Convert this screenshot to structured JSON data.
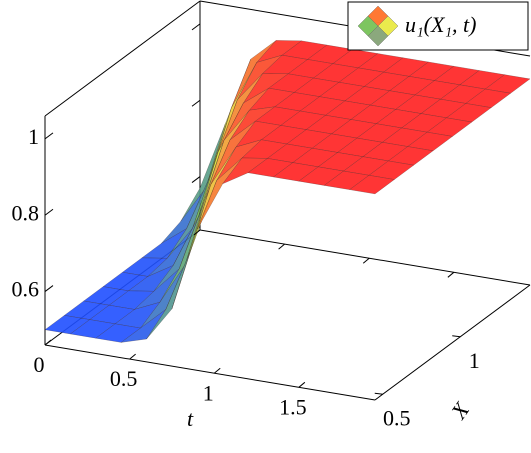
{
  "chart_data": {
    "type": "surface",
    "legend": "u₁(X₁, t)",
    "xlabel": "t",
    "ylabel": "X",
    "t": [
      0,
      0.15,
      0.3,
      0.45,
      0.6,
      0.75,
      0.9,
      1.05,
      1.2,
      1.35,
      1.5,
      1.65,
      1.8,
      1.95
    ],
    "X": [
      0.45,
      0.575,
      0.7,
      0.825,
      0.95,
      1.075,
      1.2,
      1.325,
      1.45
    ],
    "z": [
      [
        0.5,
        0.5,
        0.5,
        0.5,
        0.52,
        0.61,
        0.83,
        0.96,
        1,
        1,
        1,
        1,
        1,
        1
      ],
      [
        0.5,
        0.5,
        0.5,
        0.5,
        0.56,
        0.73,
        0.92,
        0.99,
        1,
        1,
        1,
        1,
        1,
        1
      ],
      [
        0.5,
        0.5,
        0.5,
        0.53,
        0.64,
        0.86,
        0.97,
        1,
        1,
        1,
        1,
        1,
        1,
        1
      ],
      [
        0.5,
        0.5,
        0.51,
        0.58,
        0.77,
        0.94,
        1,
        1,
        1,
        1,
        1,
        1,
        1,
        1
      ],
      [
        0.5,
        0.5,
        0.54,
        0.68,
        0.89,
        0.98,
        1,
        1,
        1,
        1,
        1,
        1,
        1,
        1
      ],
      [
        0.5,
        0.51,
        0.6,
        0.81,
        0.95,
        1,
        1,
        1,
        1,
        1,
        1,
        1,
        1,
        1
      ],
      [
        0.5,
        0.55,
        0.71,
        0.91,
        0.99,
        1,
        1,
        1,
        1,
        1,
        1,
        1,
        1,
        1
      ],
      [
        0.52,
        0.62,
        0.84,
        0.97,
        1,
        1,
        1,
        1,
        1,
        1,
        1,
        1,
        1,
        1
      ],
      [
        0.57,
        0.75,
        0.93,
        0.99,
        1,
        1,
        1,
        1,
        1,
        1,
        1,
        1,
        1,
        1
      ]
    ],
    "tlim": [
      0,
      1.95
    ],
    "tticks": [
      0,
      0.5,
      1,
      1.5
    ],
    "Xlim": [
      0.45,
      1.45
    ],
    "Xticks": [
      0.5,
      1
    ],
    "zlim": [
      0.46,
      1.06
    ],
    "zticks": [
      0.6,
      0.8,
      1
    ],
    "colormap": [
      "#1f4fff",
      "#6fbf4f",
      "#e8e83a",
      "#ff1f1f"
    ]
  }
}
